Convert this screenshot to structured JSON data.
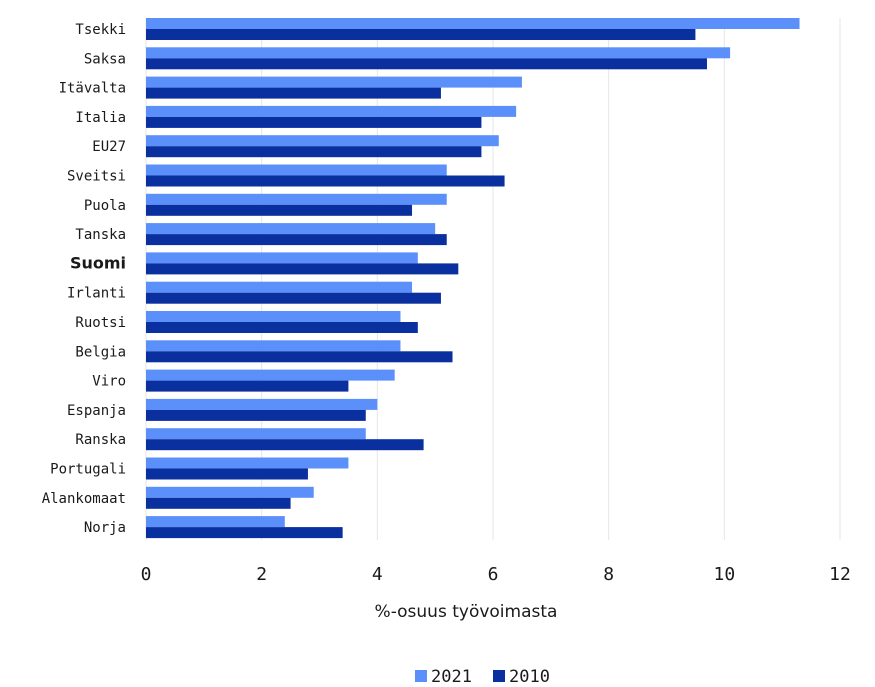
{
  "chart_data": {
    "type": "bar",
    "orientation": "horizontal",
    "categories": [
      "Tsekki",
      "Saksa",
      "Itävalta",
      "Italia",
      "EU27",
      "Sveitsi",
      "Puola",
      "Tanska",
      "Suomi",
      "Irlanti",
      "Ruotsi",
      "Belgia",
      "Viro",
      "Espanja",
      "Ranska",
      "Portugali",
      "Alankomaat",
      "Norja"
    ],
    "highlight_category": "Suomi",
    "series": [
      {
        "name": "2021",
        "color": "#5b8ff9",
        "values": [
          11.3,
          10.1,
          6.5,
          6.4,
          6.1,
          5.2,
          5.2,
          5.0,
          4.7,
          4.6,
          4.4,
          4.4,
          4.3,
          4.0,
          3.8,
          3.5,
          2.9,
          2.4
        ]
      },
      {
        "name": "2010",
        "color": "#0a2f9e",
        "values": [
          9.5,
          9.7,
          5.1,
          5.8,
          5.8,
          6.2,
          4.6,
          5.2,
          5.4,
          5.1,
          4.7,
          5.3,
          3.5,
          3.8,
          4.8,
          2.8,
          2.5,
          3.4
        ]
      }
    ],
    "xlabel": "%-osuus työvoimasta",
    "xlim": [
      0,
      12
    ],
    "xticks": [
      0,
      2,
      4,
      6,
      8,
      10,
      12
    ],
    "grid": true,
    "legend_position": "bottom-center"
  }
}
